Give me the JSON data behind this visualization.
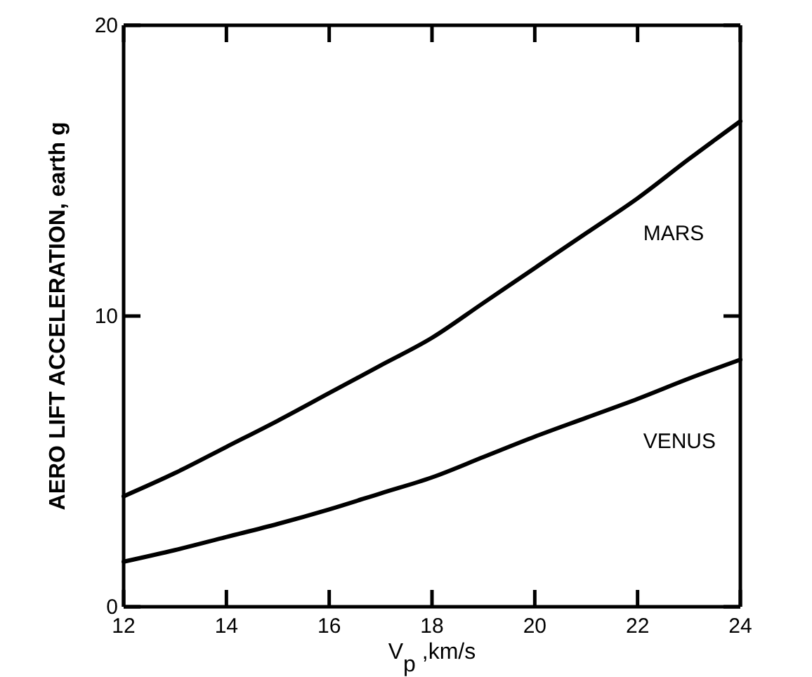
{
  "chart_data": {
    "type": "line",
    "xlabel": "V$_{p}$ ,km/s",
    "ylabel": "AERO LIFT ACCELERATION, earth g",
    "xlim": [
      12,
      24
    ],
    "ylim": [
      0,
      20
    ],
    "xticks": [
      12,
      14,
      16,
      18,
      20,
      22,
      24
    ],
    "yticks": [
      0,
      10,
      20
    ],
    "grid": false,
    "legend": false,
    "marker": "none",
    "line_style": "solid",
    "series": [
      {
        "name": "MARS",
        "color": "#000000",
        "x": [
          12,
          13,
          14,
          15,
          16,
          17,
          18,
          19,
          20,
          21,
          22,
          23,
          24
        ],
        "values": [
          3.8,
          4.6,
          5.5,
          6.4,
          7.35,
          8.3,
          9.25,
          10.45,
          11.65,
          12.85,
          14.05,
          15.4,
          16.7
        ]
      },
      {
        "name": "VENUS",
        "color": "#000000",
        "x": [
          12,
          13,
          14,
          15,
          16,
          17,
          18,
          19,
          20,
          21,
          22,
          23,
          24
        ],
        "values": [
          1.55,
          1.95,
          2.4,
          2.85,
          3.35,
          3.9,
          4.45,
          5.15,
          5.85,
          6.5,
          7.15,
          7.85,
          8.5
        ]
      }
    ]
  }
}
